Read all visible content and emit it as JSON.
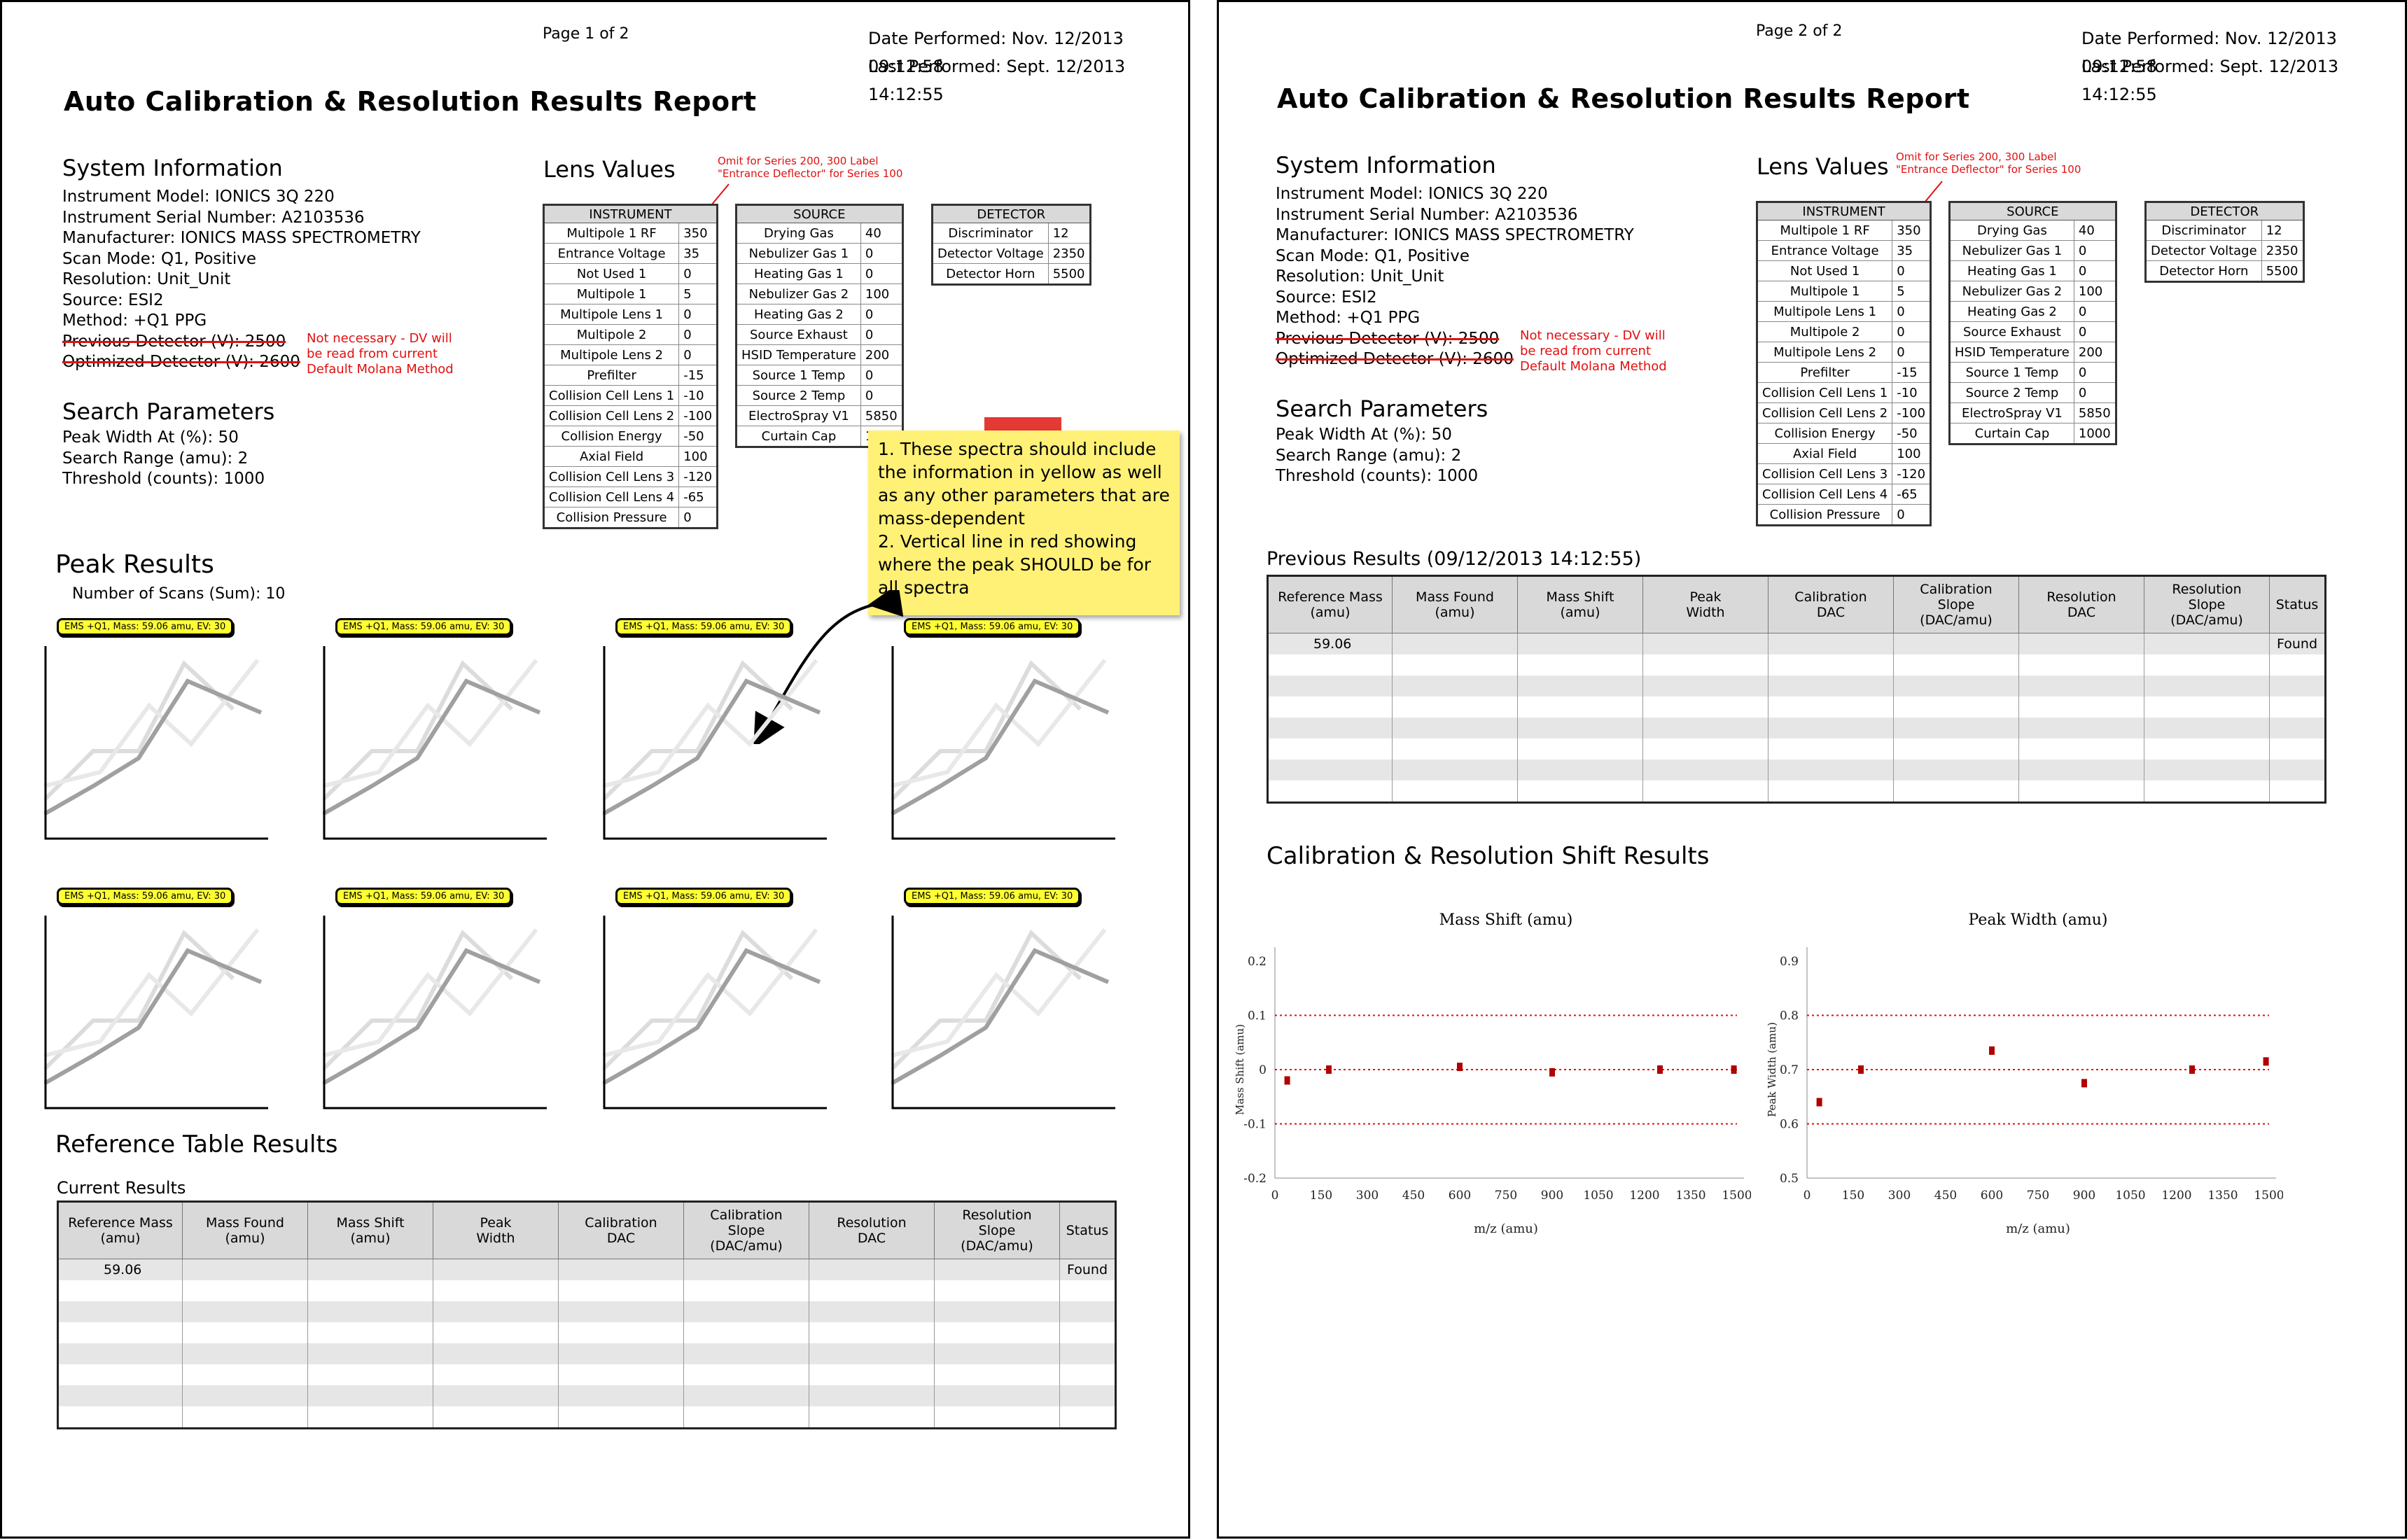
{
  "page1": {
    "page_label": "Page 1 of 2",
    "date_performed": "Date Performed: Nov. 12/2013 09:12:58",
    "last_performed": "Last Performed: Sept. 12/2013 14:12:55",
    "title": "Auto Calibration & Resolution Results Report",
    "system_info": {
      "heading": "System Information",
      "lines": [
        "Instrument Model: IONICS 3Q 220",
        "Instrument Serial Number: A2103536",
        "Manufacturer: IONICS MASS SPECTROMETRY",
        "Scan Mode: Q1, Positive",
        "Resolution: Unit_Unit",
        "Source: ESI2",
        "Method: +Q1 PPG"
      ],
      "struck_lines": [
        "Previous Detector (V): 2500",
        "Optimized Detector (V): 2600"
      ],
      "detector_note": "Not necessary - DV will be read from current Default Molana Method"
    },
    "search_params": {
      "heading": "Search Parameters",
      "lines": [
        "Peak Width At (%): 50",
        "Search Range (amu): 2",
        "Threshold (counts): 1000"
      ]
    },
    "lens_heading": "Lens Values",
    "lens_note": "Omit for Series 200, 300 Label \"Entrance Deflector\" for Series 100",
    "sticky_note": "1. These spectra should include the information in yellow as well as any other parameters that are mass-dependent\n2. Vertical line in red showing where the peak SHOULD be for all spectra",
    "peak_results": {
      "heading": "Peak Results",
      "scans": "Number of Scans (Sum): 10",
      "spectrum_label": "EMS +Q1, Mass: 59.06 amu, EV: 30"
    },
    "reference_heading": "Reference Table Results",
    "current_results": "Current Results"
  },
  "page2": {
    "page_label": "Page 2 of 2",
    "date_performed": "Date Performed: Nov. 12/2013 09:12:58",
    "last_performed": "Last Performed: Sept. 12/2013 14:12:55",
    "title": "Auto Calibration & Resolution Results Report",
    "previous_results": "Previous Results (09/12/2013 14:12:55)",
    "shift_heading": "Calibration & Resolution Shift Results"
  },
  "lens_tables": {
    "instrument": {
      "header": "INSTRUMENT",
      "rows": [
        [
          "Multipole 1 RF",
          "350"
        ],
        [
          "Entrance Voltage",
          "35"
        ],
        [
          "Not Used 1",
          "0"
        ],
        [
          "Multipole 1",
          "5"
        ],
        [
          "Multipole Lens 1",
          "0"
        ],
        [
          "Multipole 2",
          "0"
        ],
        [
          "Multipole Lens 2",
          "0"
        ],
        [
          "Prefilter",
          "-15"
        ],
        [
          "Collision Cell Lens 1",
          "-10"
        ],
        [
          "Collision Cell Lens 2",
          "-100"
        ],
        [
          "Collision Energy",
          "-50"
        ],
        [
          "Axial Field",
          "100"
        ],
        [
          "Collision Cell Lens 3",
          "-120"
        ],
        [
          "Collision Cell Lens 4",
          "-65"
        ],
        [
          "Collision Pressure",
          "0"
        ]
      ]
    },
    "source": {
      "header": "SOURCE",
      "rows": [
        [
          "Drying Gas",
          "40"
        ],
        [
          "Nebulizer Gas 1",
          "0"
        ],
        [
          "Heating Gas 1",
          "0"
        ],
        [
          "Nebulizer Gas 2",
          "100"
        ],
        [
          "Heating Gas 2",
          "0"
        ],
        [
          "Source Exhaust",
          "0"
        ],
        [
          "HSID Temperature",
          "200"
        ],
        [
          "Source 1 Temp",
          "0"
        ],
        [
          "Source 2 Temp",
          "0"
        ],
        [
          "ElectroSpray V1",
          "5850"
        ],
        [
          "Curtain Cap",
          "1000"
        ]
      ]
    },
    "detector": {
      "header": "DETECTOR",
      "rows": [
        [
          "Discriminator",
          "12"
        ],
        [
          "Detector Voltage",
          "2350"
        ],
        [
          "Detector Horn",
          "5500"
        ]
      ]
    }
  },
  "results_table": {
    "headers": [
      "Reference Mass\n(amu)",
      "Mass Found\n(amu)",
      "Mass Shift\n(amu)",
      "Peak\nWidth",
      "Calibration\nDAC",
      "Calibration\nSlope\n(DAC/amu)",
      "Resolution\nDAC",
      "Resolution\nSlope\n(DAC/amu)",
      "Status"
    ],
    "first_row": [
      "59.06",
      "",
      "",
      "",
      "",
      "",
      "",
      "",
      "Found"
    ]
  },
  "chart_data": [
    {
      "type": "scatter",
      "title": "Mass Shift (amu)",
      "xlabel": "m/z (amu)",
      "ylabel": "Mass Shift (amu)",
      "xlim": [
        0,
        1500
      ],
      "ylim": [
        -0.2,
        0.2
      ],
      "xticks": [
        "0",
        "150",
        "300",
        "450",
        "600",
        "750",
        "900",
        "1050",
        "1200",
        "1350",
        "1500"
      ],
      "yticks": [
        "0.2",
        "0.1",
        "0",
        "-0.1",
        "-0.2"
      ],
      "x": [
        40,
        175,
        600,
        900,
        1250,
        1490
      ],
      "y": [
        -0.02,
        0.0,
        0.005,
        -0.005,
        0.0,
        0.0
      ],
      "reference_lines": [
        0.1,
        0,
        -0.1
      ],
      "marker_color": "#b00000",
      "line_color": "#e01010"
    },
    {
      "type": "scatter",
      "title": "Peak Width (amu)",
      "xlabel": "m/z (amu)",
      "ylabel": "Peak Width (amu)",
      "xlim": [
        0,
        1500
      ],
      "ylim": [
        0.5,
        0.9
      ],
      "xticks": [
        "0",
        "150",
        "300",
        "450",
        "600",
        "750",
        "900",
        "1050",
        "1200",
        "1350",
        "1500"
      ],
      "yticks": [
        "0.9",
        "0.8",
        "0.7",
        "0.6",
        "0.5"
      ],
      "x": [
        40,
        175,
        600,
        900,
        1250,
        1490
      ],
      "y": [
        0.64,
        0.7,
        0.735,
        0.675,
        0.7,
        0.715
      ],
      "reference_lines": [
        0.8,
        0.7,
        0.6
      ],
      "marker_color": "#b00000",
      "line_color": "#e01010"
    }
  ]
}
